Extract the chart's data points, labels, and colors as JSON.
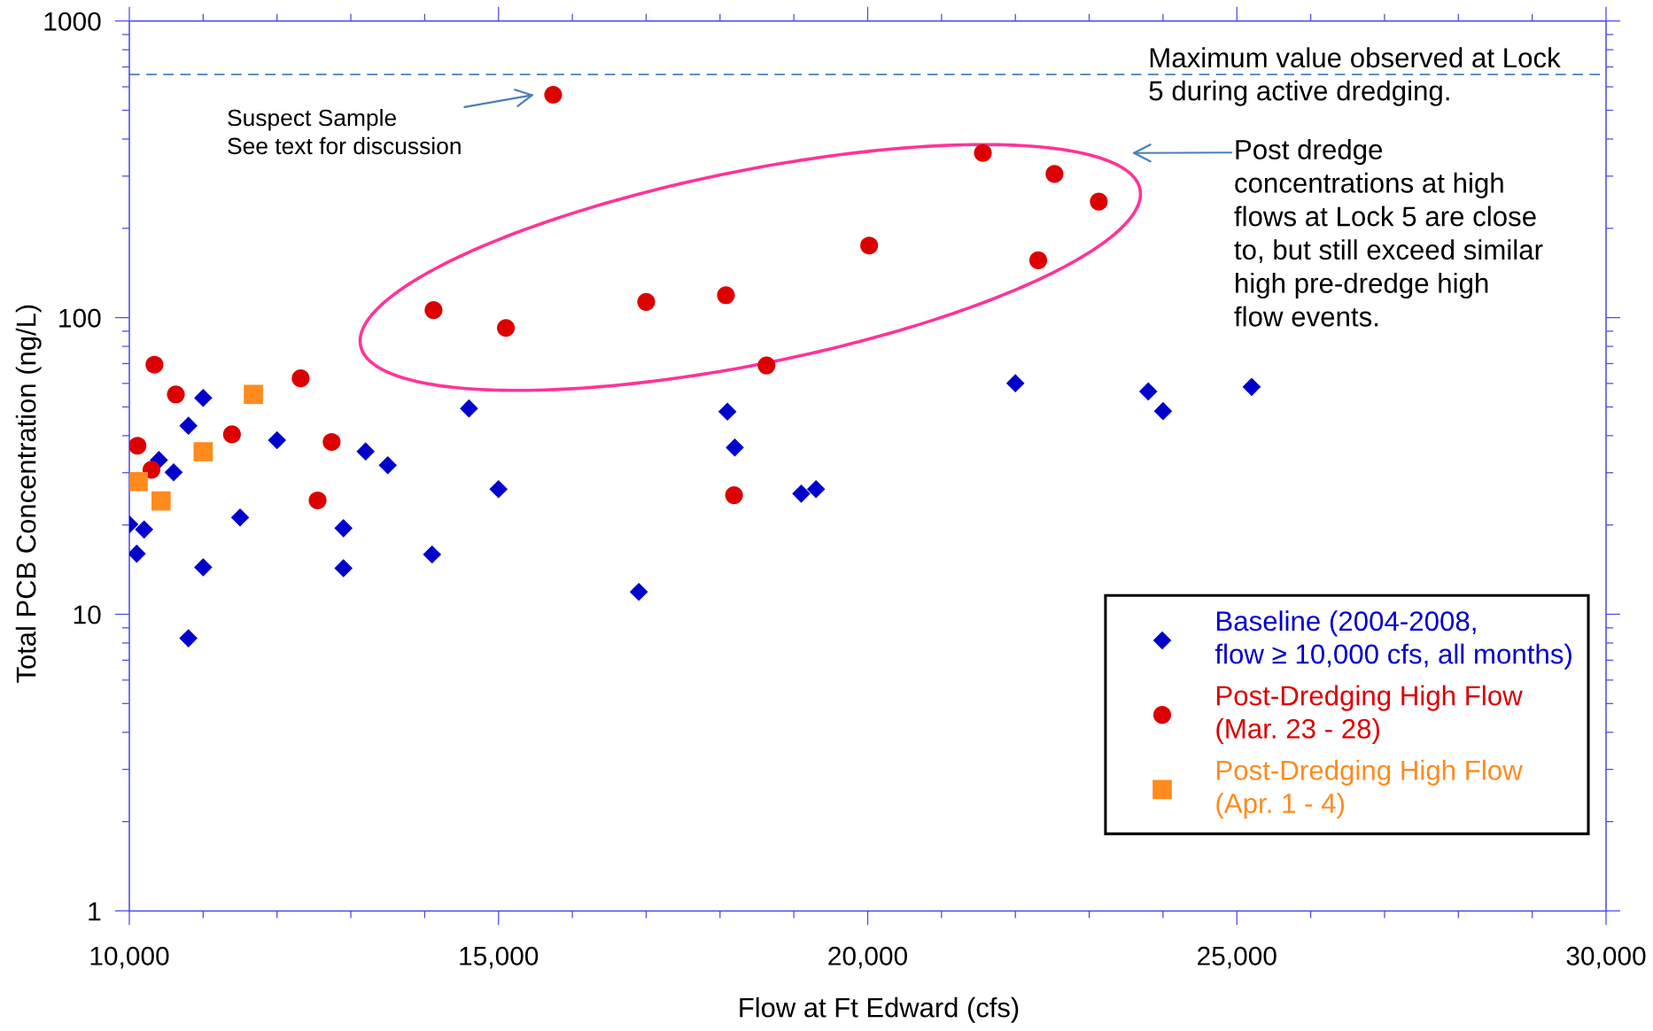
{
  "chart_data": {
    "type": "scatter",
    "xlabel": "Flow at Ft Edward (cfs)",
    "ylabel": "Total PCB Concentration (ng/L)",
    "log": "y",
    "xlim": [
      10000,
      30000
    ],
    "ylim": [
      1,
      1000
    ],
    "xticks": [
      {
        "value": 10000,
        "label": "10,000"
      },
      {
        "value": 11000,
        "label": null
      },
      {
        "value": 12000,
        "label": null
      },
      {
        "value": 13000,
        "label": null
      },
      {
        "value": 14000,
        "label": null
      },
      {
        "value": 15000,
        "label": "15,000"
      },
      {
        "value": 16000,
        "label": null
      },
      {
        "value": 17000,
        "label": null
      },
      {
        "value": 18000,
        "label": null
      },
      {
        "value": 19000,
        "label": null
      },
      {
        "value": 20000,
        "label": "20,000"
      },
      {
        "value": 21000,
        "label": null
      },
      {
        "value": 22000,
        "label": null
      },
      {
        "value": 23000,
        "label": null
      },
      {
        "value": 24000,
        "label": null
      },
      {
        "value": 25000,
        "label": "25,000"
      },
      {
        "value": 26000,
        "label": null
      },
      {
        "value": 27000,
        "label": null
      },
      {
        "value": 28000,
        "label": null
      },
      {
        "value": 29000,
        "label": null
      },
      {
        "value": 30000,
        "label": "30,000"
      }
    ],
    "yticks": [
      1,
      {
        "value": 2,
        "label": null
      },
      {
        "value": 3,
        "label": null
      },
      {
        "value": 4,
        "label": null
      },
      {
        "value": 5,
        "label": null
      },
      {
        "value": 6,
        "label": null
      },
      {
        "value": 7,
        "label": null
      },
      {
        "value": 8,
        "label": null
      },
      {
        "value": 9,
        "label": null
      },
      10,
      {
        "value": 20,
        "label": null
      },
      {
        "value": 30,
        "label": null
      },
      {
        "value": 40,
        "label": null
      },
      {
        "value": 50,
        "label": null
      },
      {
        "value": 60,
        "label": null
      },
      {
        "value": 70,
        "label": null
      },
      {
        "value": 80,
        "label": null
      },
      {
        "value": 90,
        "label": null
      },
      100,
      {
        "value": 200,
        "label": null
      },
      {
        "value": 300,
        "label": null
      },
      {
        "value": 400,
        "label": null
      },
      {
        "value": 500,
        "label": null
      },
      {
        "value": 600,
        "label": null
      },
      {
        "value": 700,
        "label": null
      },
      {
        "value": 800,
        "label": null
      },
      {
        "value": 900,
        "label": null
      },
      1000
    ],
    "legend": "bottom right",
    "series": [
      {
        "name": "Baseline (2004-2008,\nflow ≥ 10,000 cfs, all months)",
        "color": "#0000cc",
        "marker": "diamond",
        "x": [
          10000,
          10100,
          10200,
          10400,
          10600,
          10800,
          10800,
          11000,
          11000,
          11500,
          12000,
          12900,
          12900,
          13200,
          13500,
          14100,
          14600,
          15000,
          16900,
          18100,
          18200,
          19100,
          19300,
          22000,
          23800,
          24000,
          25200
        ],
        "values": [
          20.1,
          16.0,
          19.3,
          33.1,
          30.1,
          43.2,
          8.3,
          53.6,
          14.4,
          21.2,
          38.6,
          19.5,
          14.3,
          35.4,
          31.8,
          15.9,
          49.4,
          26.4,
          11.9,
          48.2,
          36.5,
          25.5,
          26.4,
          60.1,
          56.4,
          48.4,
          58.4
        ]
      },
      {
        "name": "Post-Dredging High Flow\n(Mar. 23 - 28)",
        "color": "#dd0000",
        "marker": "circle",
        "x": [
          10110,
          10300,
          10340,
          10630,
          11390,
          12320,
          12550,
          12740,
          14120,
          15100,
          15740,
          17000,
          18080,
          18190,
          18630,
          20020,
          21560,
          22310,
          22530,
          23130
        ],
        "values": [
          37.0,
          30.7,
          69.4,
          55.1,
          40.4,
          62.4,
          24.2,
          38.1,
          106,
          92.3,
          564,
          113,
          119,
          25.2,
          69.0,
          175,
          359,
          156,
          305,
          246
        ]
      },
      {
        "name": "Post-Dredging High Flow\n(Apr. 1 - 4)",
        "color": "#ff8a1e",
        "marker": "square",
        "x": [
          10120,
          10430,
          11000,
          11680
        ],
        "values": [
          28.0,
          24.1,
          35.3,
          55.1
        ]
      }
    ],
    "ref_lines": [
      {
        "axis": "y",
        "value": 660,
        "label": "Maximum value observed at Lock\n5 during active dredging.",
        "color": "#4a7ebb",
        "line_style": "dashed"
      }
    ],
    "annotations": [
      "Suspect Sample\nSee text for discussion",
      "Post dredge\nconcentrations at high\nflows at Lock 5 are close\nto, but still exceed similar\nhigh pre-dredge high\nflow events."
    ]
  }
}
